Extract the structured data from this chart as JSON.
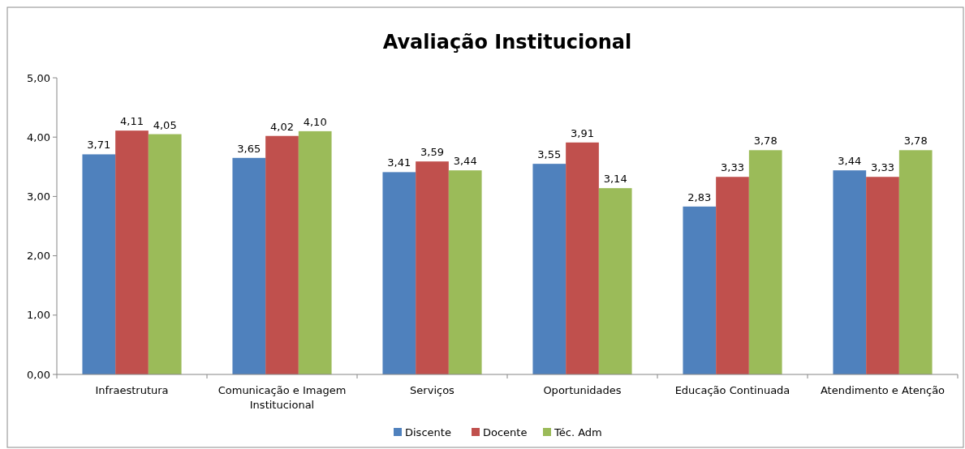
{
  "chart_data": {
    "type": "bar",
    "title": "Avaliação Institucional",
    "categories": [
      "Infraestrutura",
      "Comunicação e Imagem Institucional",
      "Serviços",
      "Oportunidades",
      "Educação Continuada",
      "Atendimento e Atenção"
    ],
    "series": [
      {
        "name": "Discente",
        "color": "#4f81bd",
        "values": [
          3.71,
          3.65,
          3.41,
          3.55,
          2.83,
          3.44
        ],
        "value_labels": [
          "3,71",
          "3,65",
          "3,41",
          "3,55",
          "2,83",
          "3,44"
        ]
      },
      {
        "name": "Docente",
        "color": "#c0504d",
        "values": [
          4.11,
          4.02,
          3.59,
          3.91,
          3.33,
          3.33
        ],
        "value_labels": [
          "4,11",
          "4,02",
          "3,59",
          "3,91",
          "3,33",
          "3,33"
        ]
      },
      {
        "name": "Téc. Adm",
        "color": "#9bbb59",
        "values": [
          4.05,
          4.1,
          3.44,
          3.14,
          3.78,
          3.78
        ],
        "value_labels": [
          "4,05",
          "4,10",
          "3,44",
          "3,14",
          "3,78",
          "3,78"
        ]
      }
    ],
    "ylim": [
      0,
      5
    ],
    "yticks": [
      {
        "value": 0,
        "label": "0,00"
      },
      {
        "value": 1,
        "label": "1,00"
      },
      {
        "value": 2,
        "label": "2,00"
      },
      {
        "value": 3,
        "label": "3,00"
      },
      {
        "value": 4,
        "label": "4,00"
      },
      {
        "value": 5,
        "label": "5,00"
      }
    ],
    "grid": false,
    "legend": "bottom"
  }
}
